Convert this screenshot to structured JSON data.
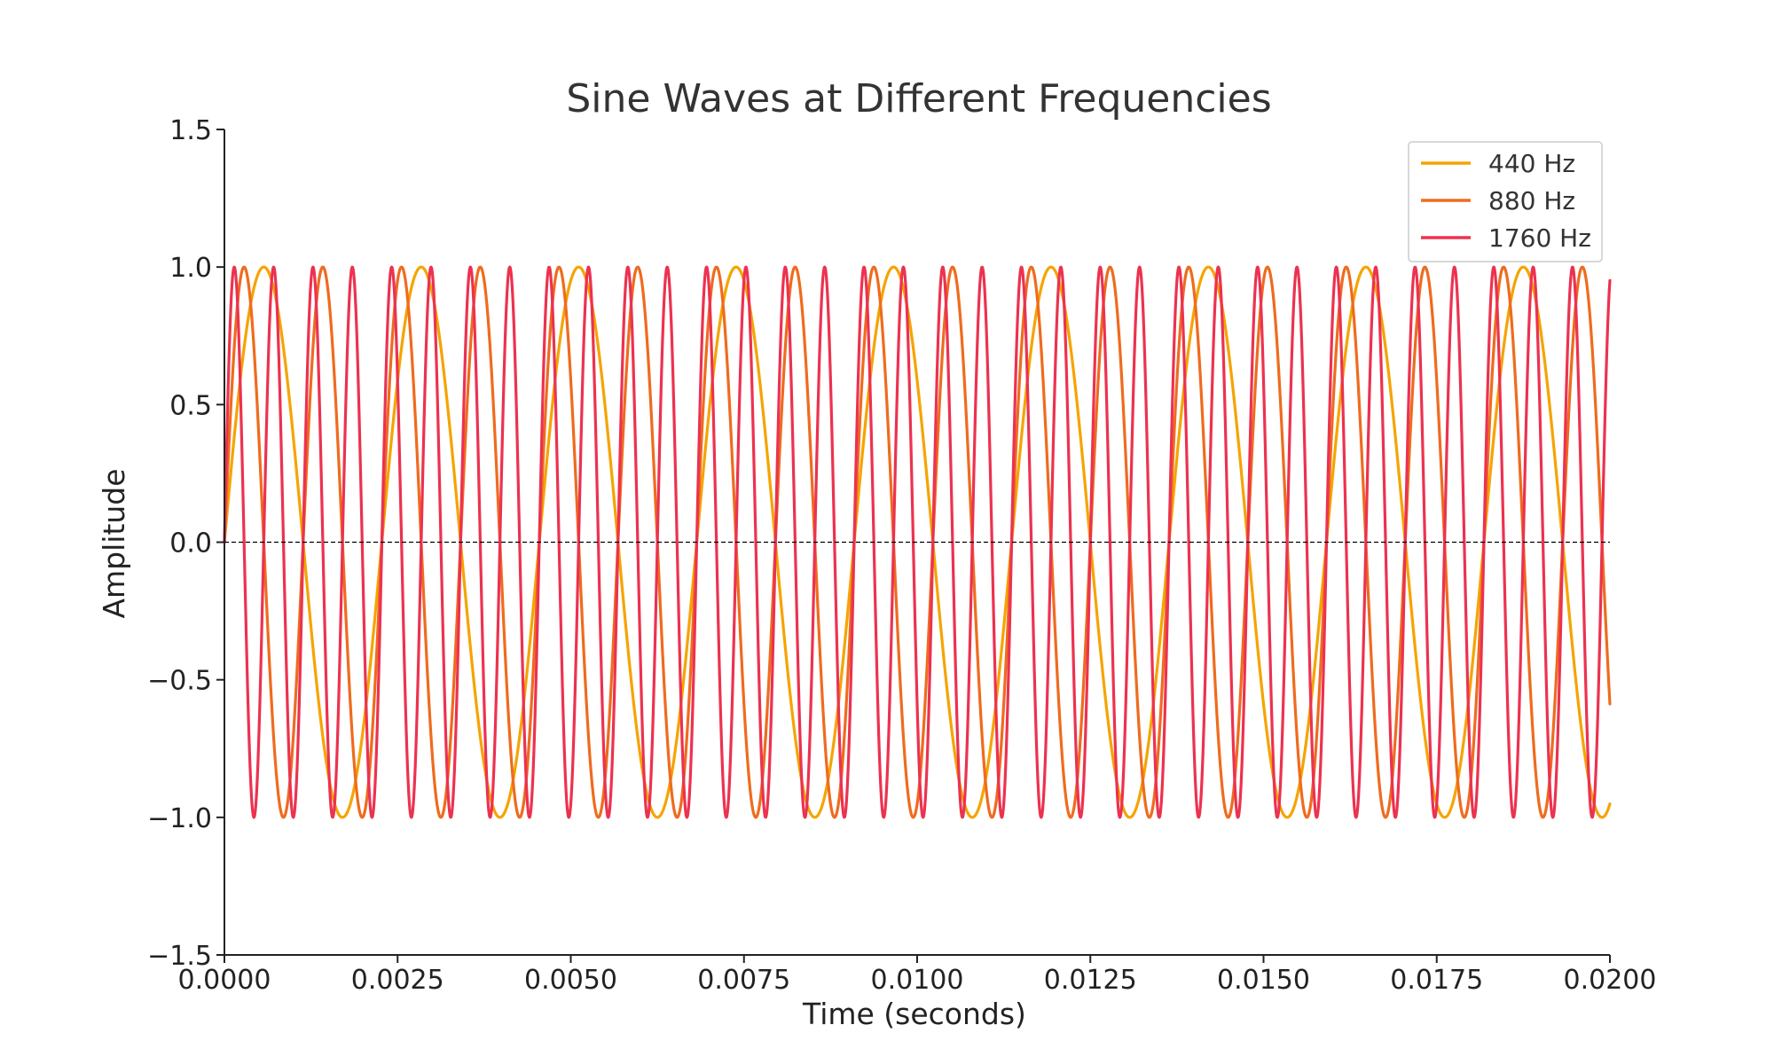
{
  "chart_data": {
    "type": "line",
    "title": "Sine Waves at Different Frequencies",
    "xlabel": "Time (seconds)",
    "ylabel": "Amplitude",
    "xlim": [
      0,
      0.02
    ],
    "ylim": [
      -1.5,
      1.5
    ],
    "x_ticks": [
      "0.0000",
      "0.0025",
      "0.0050",
      "0.0075",
      "0.0100",
      "0.0125",
      "0.0150",
      "0.0175",
      "0.0200"
    ],
    "y_ticks": [
      "1.5",
      "1.0",
      "0.5",
      "0.0",
      "−0.5",
      "−1.0",
      "−1.5"
    ],
    "x_tick_values": [
      0,
      0.0025,
      0.005,
      0.0075,
      0.01,
      0.0125,
      0.015,
      0.0175,
      0.02
    ],
    "y_tick_values": [
      1.5,
      1.0,
      0.5,
      0.0,
      -0.5,
      -1.0,
      -1.5
    ],
    "reference_line": {
      "y": 0.0,
      "style": "dashed",
      "color": "#000000"
    },
    "grid": false,
    "legend_position": "top-right",
    "series": [
      {
        "name": "440 Hz",
        "function": "sin(2*pi*f*t)",
        "frequency": 440,
        "amplitude": 1,
        "x_range": [
          0,
          0.02
        ],
        "color": "#F5A400"
      },
      {
        "name": "880 Hz",
        "function": "sin(2*pi*f*t)",
        "frequency": 880,
        "amplitude": 1,
        "x_range": [
          0,
          0.02
        ],
        "color": "#EF6B1E"
      },
      {
        "name": "1760 Hz",
        "function": "sin(2*pi*f*t)",
        "frequency": 1760,
        "amplitude": 1,
        "x_range": [
          0,
          0.02
        ],
        "color": "#EC3250"
      }
    ]
  }
}
